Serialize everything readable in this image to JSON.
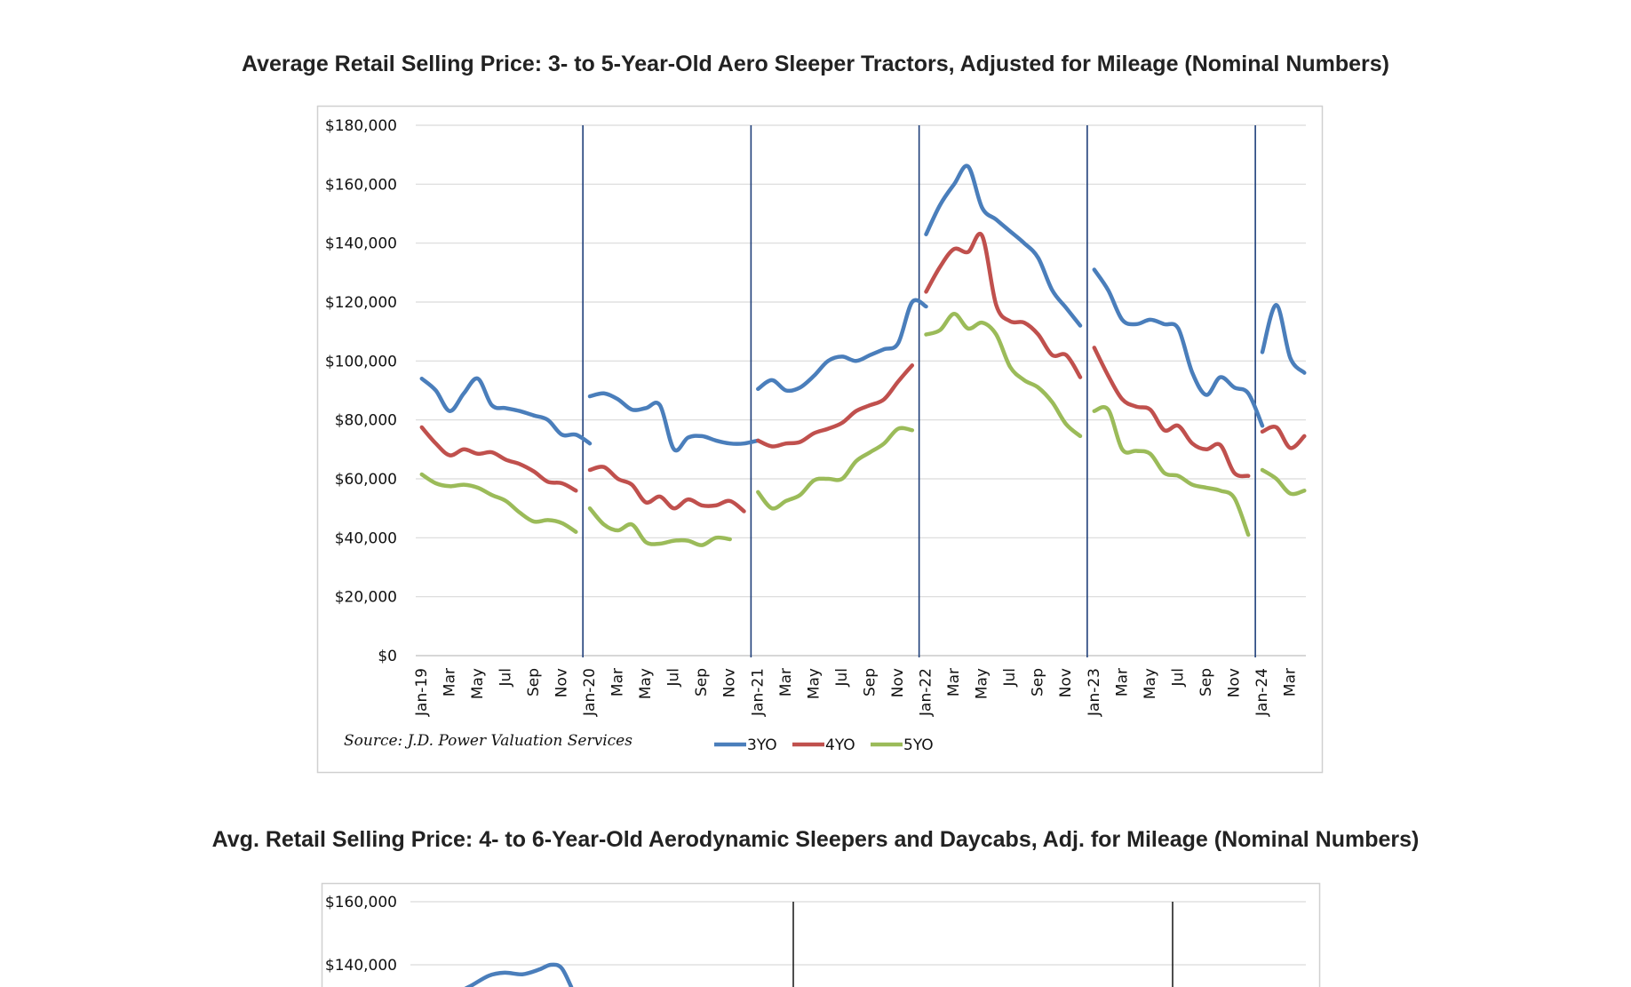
{
  "chart_data": [
    {
      "type": "line",
      "title": "Average Retail Selling Price: 3- to 5-Year-Old Aero Sleeper Tractors, Adjusted for Mileage (Nominal Numbers)",
      "ylim": [
        0,
        180000
      ],
      "yticks": [
        "$0",
        "$20,000",
        "$40,000",
        "$60,000",
        "$80,000",
        "$100,000",
        "$120,000",
        "$140,000",
        "$160,000",
        "$180,000"
      ],
      "x_labels": [
        "Jan-19",
        "Mar",
        "May",
        "Jul",
        "Sep",
        "Nov",
        "Jan-20",
        "Mar",
        "May",
        "Jul",
        "Sep",
        "Nov",
        "Jan-21",
        "Mar",
        "May",
        "Jul",
        "Sep",
        "Nov",
        "Jan-22",
        "Mar",
        "May",
        "Jul",
        "Sep",
        "Nov",
        "Jan-23",
        "Mar",
        "May",
        "Jul",
        "Sep",
        "Nov",
        "Jan-24",
        "Mar"
      ],
      "grid": true,
      "year_separators": [
        "Jan-20",
        "Jan-21",
        "Jan-22",
        "Jan-23",
        "Jan-24"
      ],
      "source": "Source: J.D. Power Valuation Services",
      "legend_position": "bottom",
      "series": [
        {
          "name": "3YO",
          "color": "#4a7ebb",
          "segments": [
            [
              94000,
              90000,
              83000,
              89000,
              94000,
              85000,
              84000,
              83000,
              81500,
              80000,
              75000,
              75000,
              72000
            ],
            [
              88000,
              89000,
              87000,
              83500,
              84000,
              85000,
              70000,
              74000,
              74500,
              73000,
              72000,
              72000,
              73000
            ],
            [
              90500,
              93500,
              90000,
              91000,
              95000,
              100000,
              101500,
              100000,
              102000,
              104000,
              106000,
              120000,
              118500
            ],
            [
              143000,
              153000,
              160000,
              166000,
              152000,
              148000,
              144000,
              140000,
              135000,
              124000,
              118000,
              112000
            ],
            [
              131000,
              124000,
              114000,
              112500,
              114000,
              112500,
              111000,
              96000,
              88500,
              94500,
              91000,
              89000,
              78000
            ],
            [
              103000,
              119000,
              101000,
              96000
            ]
          ]
        },
        {
          "name": "4YO",
          "color": "#c0504d",
          "segments": [
            [
              77500,
              72000,
              68000,
              70000,
              68500,
              69000,
              66500,
              65000,
              62500,
              59000,
              58500,
              56000
            ],
            [
              63000,
              64000,
              60000,
              58000,
              52000,
              54000,
              50000,
              53000,
              51000,
              51000,
              52500,
              49000
            ],
            [
              73000,
              71000,
              72000,
              72500,
              75500,
              77000,
              79000,
              83000,
              85000,
              87000,
              93000,
              98500
            ],
            [
              123500,
              132000,
              138000,
              137000,
              142500,
              119000,
              113500,
              113000,
              109000,
              102000,
              102000,
              94500
            ],
            [
              104500,
              95000,
              87000,
              84500,
              83500,
              76500,
              78000,
              72000,
              70000,
              71500,
              62000,
              61000
            ],
            [
              76000,
              77500,
              70500,
              74500
            ]
          ]
        },
        {
          "name": "5YO",
          "color": "#9bbb59",
          "segments": [
            [
              61500,
              58500,
              57500,
              58000,
              57000,
              54500,
              52500,
              48500,
              45500,
              46000,
              45000,
              42000
            ],
            [
              50000,
              44500,
              42500,
              44500,
              38500,
              38000,
              39000,
              39000,
              37500,
              40000,
              39500
            ],
            [
              55500,
              50000,
              52500,
              54500,
              59500,
              60000,
              60000,
              66000,
              69000,
              72000,
              77000,
              76500
            ],
            [
              109000,
              110500,
              116000,
              111000,
              113000,
              109000,
              98000,
              93500,
              91000,
              86000,
              78500,
              74500
            ],
            [
              83000,
              83500,
              70000,
              69500,
              68500,
              62000,
              61000,
              58000,
              57000,
              56000,
              53500,
              41000
            ],
            [
              63000,
              60000,
              55000,
              56000
            ]
          ]
        }
      ]
    },
    {
      "type": "line",
      "title": "Avg. Retail Selling Price: 4- to 6-Year-Old Aerodynamic Sleepers and Daycabs, Adj. for Mileage (Nominal Numbers)",
      "ylim": [
        0,
        160000
      ],
      "yticks_visible": [
        "$160,000",
        "$140,000"
      ],
      "grid": true,
      "series": [
        {
          "name": "",
          "color": "#4a7ebb",
          "visible_values": [
            130000,
            133000,
            136500,
            137500,
            137000,
            138500,
            140000,
            139000,
            133000
          ]
        }
      ]
    }
  ]
}
